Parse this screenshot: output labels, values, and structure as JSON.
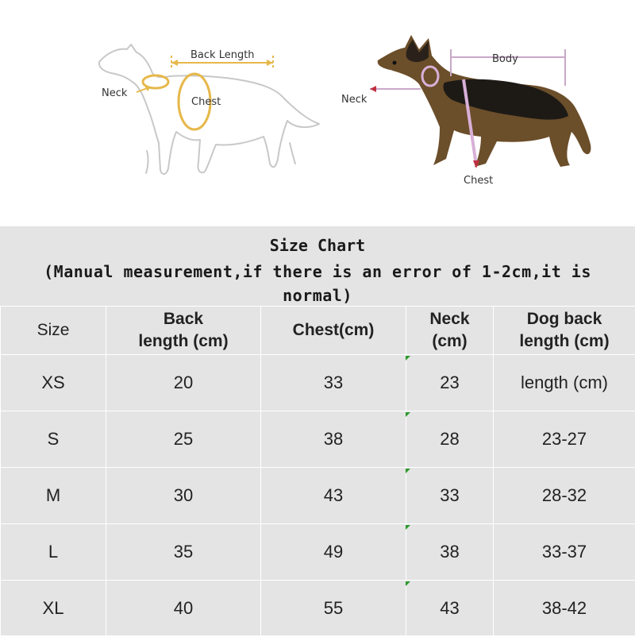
{
  "diagram_left": {
    "back_length_label": "Back Length",
    "neck_label": "Neck",
    "chest_label": "Chest"
  },
  "diagram_right": {
    "body_label": "Body",
    "neck_label": "Neck",
    "chest_label": "Chest"
  },
  "size_chart": {
    "title": "Size Chart",
    "subtitle": "(Manual measurement,if there is an error of 1-2cm,it is normal)",
    "headers": [
      {
        "line1": "Size",
        "line2": ""
      },
      {
        "line1": "Back",
        "line2": "length (cm)"
      },
      {
        "line1": "Chest(cm)",
        "line2": ""
      },
      {
        "line1": "Neck",
        "line2": "(cm)"
      },
      {
        "line1": "Dog back",
        "line2": "length (cm)"
      }
    ],
    "rows": [
      [
        "XS",
        "20",
        "33",
        "23",
        "length (cm)"
      ],
      [
        "S",
        "25",
        "38",
        "28",
        "23-27"
      ],
      [
        "M",
        "30",
        "43",
        "33",
        "28-32"
      ],
      [
        "L",
        "35",
        "49",
        "38",
        "33-37"
      ],
      [
        "XL",
        "40",
        "55",
        "43",
        "38-42"
      ]
    ],
    "colors": {
      "background": "#e4e4e4",
      "gridline": "#ffffff",
      "tick_mark": "#2c9a2c"
    }
  }
}
